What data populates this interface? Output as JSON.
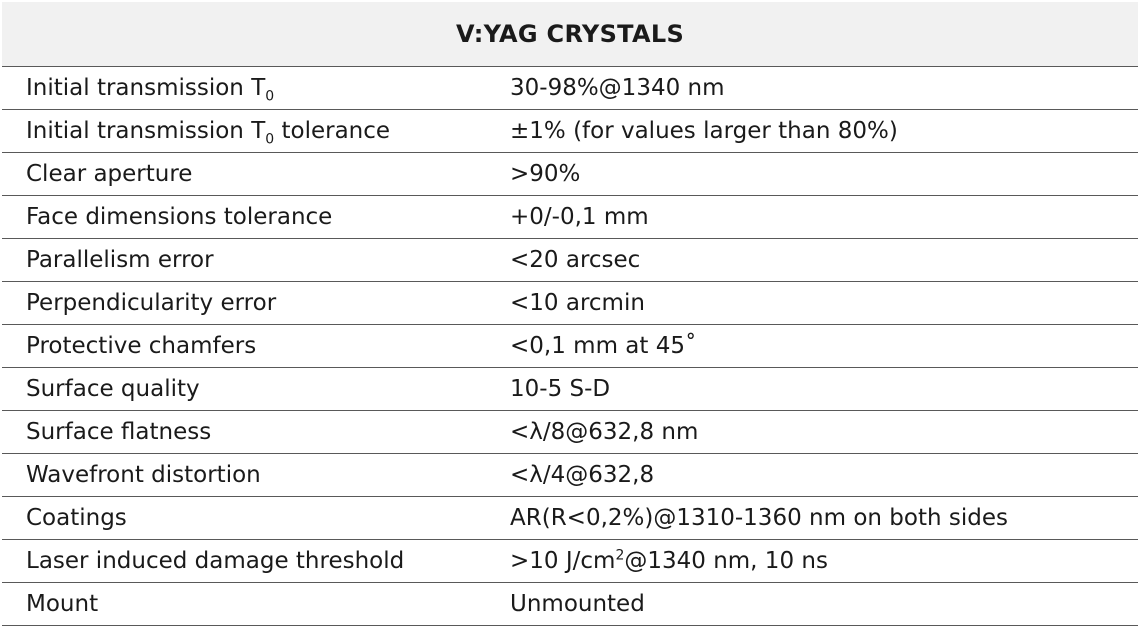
{
  "table": {
    "title": "V:YAG CRYSTALS",
    "rows": [
      {
        "param": {
          "main": "Initial transmission T",
          "sub": "0",
          "tail": ""
        },
        "value": {
          "main": "30-98%@1340 nm",
          "sup": "",
          "tail": ""
        }
      },
      {
        "param": {
          "main": "Initial transmission T",
          "sub": "0",
          "tail": " tolerance"
        },
        "value": {
          "main": "±1% (for values larger than 80%)",
          "sup": "",
          "tail": ""
        }
      },
      {
        "param": {
          "main": "Clear aperture",
          "sub": "",
          "tail": ""
        },
        "value": {
          "main": ">90%",
          "sup": "",
          "tail": ""
        }
      },
      {
        "param": {
          "main": "Face dimensions tolerance",
          "sub": "",
          "tail": ""
        },
        "value": {
          "main": "+0/-0,1 mm",
          "sup": "",
          "tail": ""
        }
      },
      {
        "param": {
          "main": "Parallelism error",
          "sub": "",
          "tail": ""
        },
        "value": {
          "main": "<20 arcsec",
          "sup": "",
          "tail": ""
        }
      },
      {
        "param": {
          "main": "Perpendicularity error",
          "sub": "",
          "tail": ""
        },
        "value": {
          "main": "<10 arcmin",
          "sup": "",
          "tail": ""
        }
      },
      {
        "param": {
          "main": "Protective chamfers",
          "sub": "",
          "tail": ""
        },
        "value": {
          "main": "<0,1 mm at 45˚",
          "sup": "",
          "tail": ""
        }
      },
      {
        "param": {
          "main": "Surface quality",
          "sub": "",
          "tail": ""
        },
        "value": {
          "main": "10-5 S-D",
          "sup": "",
          "tail": ""
        }
      },
      {
        "param": {
          "main": "Surface flatness",
          "sub": "",
          "tail": ""
        },
        "value": {
          "main": "<λ/8@632,8 nm",
          "sup": "",
          "tail": ""
        }
      },
      {
        "param": {
          "main": "Wavefront distortion",
          "sub": "",
          "tail": ""
        },
        "value": {
          "main": "<λ/4@632,8",
          "sup": "",
          "tail": ""
        }
      },
      {
        "param": {
          "main": "Coatings",
          "sub": "",
          "tail": ""
        },
        "value": {
          "main": "AR(R<0,2%)@1310-1360 nm on both sides",
          "sup": "",
          "tail": ""
        }
      },
      {
        "param": {
          "main": "Laser induced damage threshold",
          "sub": "",
          "tail": ""
        },
        "value": {
          "main": ">10 J/cm",
          "sup": "2",
          "tail": "@1340 nm, 10 ns"
        }
      },
      {
        "param": {
          "main": "Mount",
          "sub": "",
          "tail": ""
        },
        "value": {
          "main": "Unmounted",
          "sup": "",
          "tail": ""
        }
      }
    ]
  },
  "colors": {
    "header_background": "#f1f1f1",
    "rule_line": "#595959",
    "text": "#1a1a1a"
  }
}
